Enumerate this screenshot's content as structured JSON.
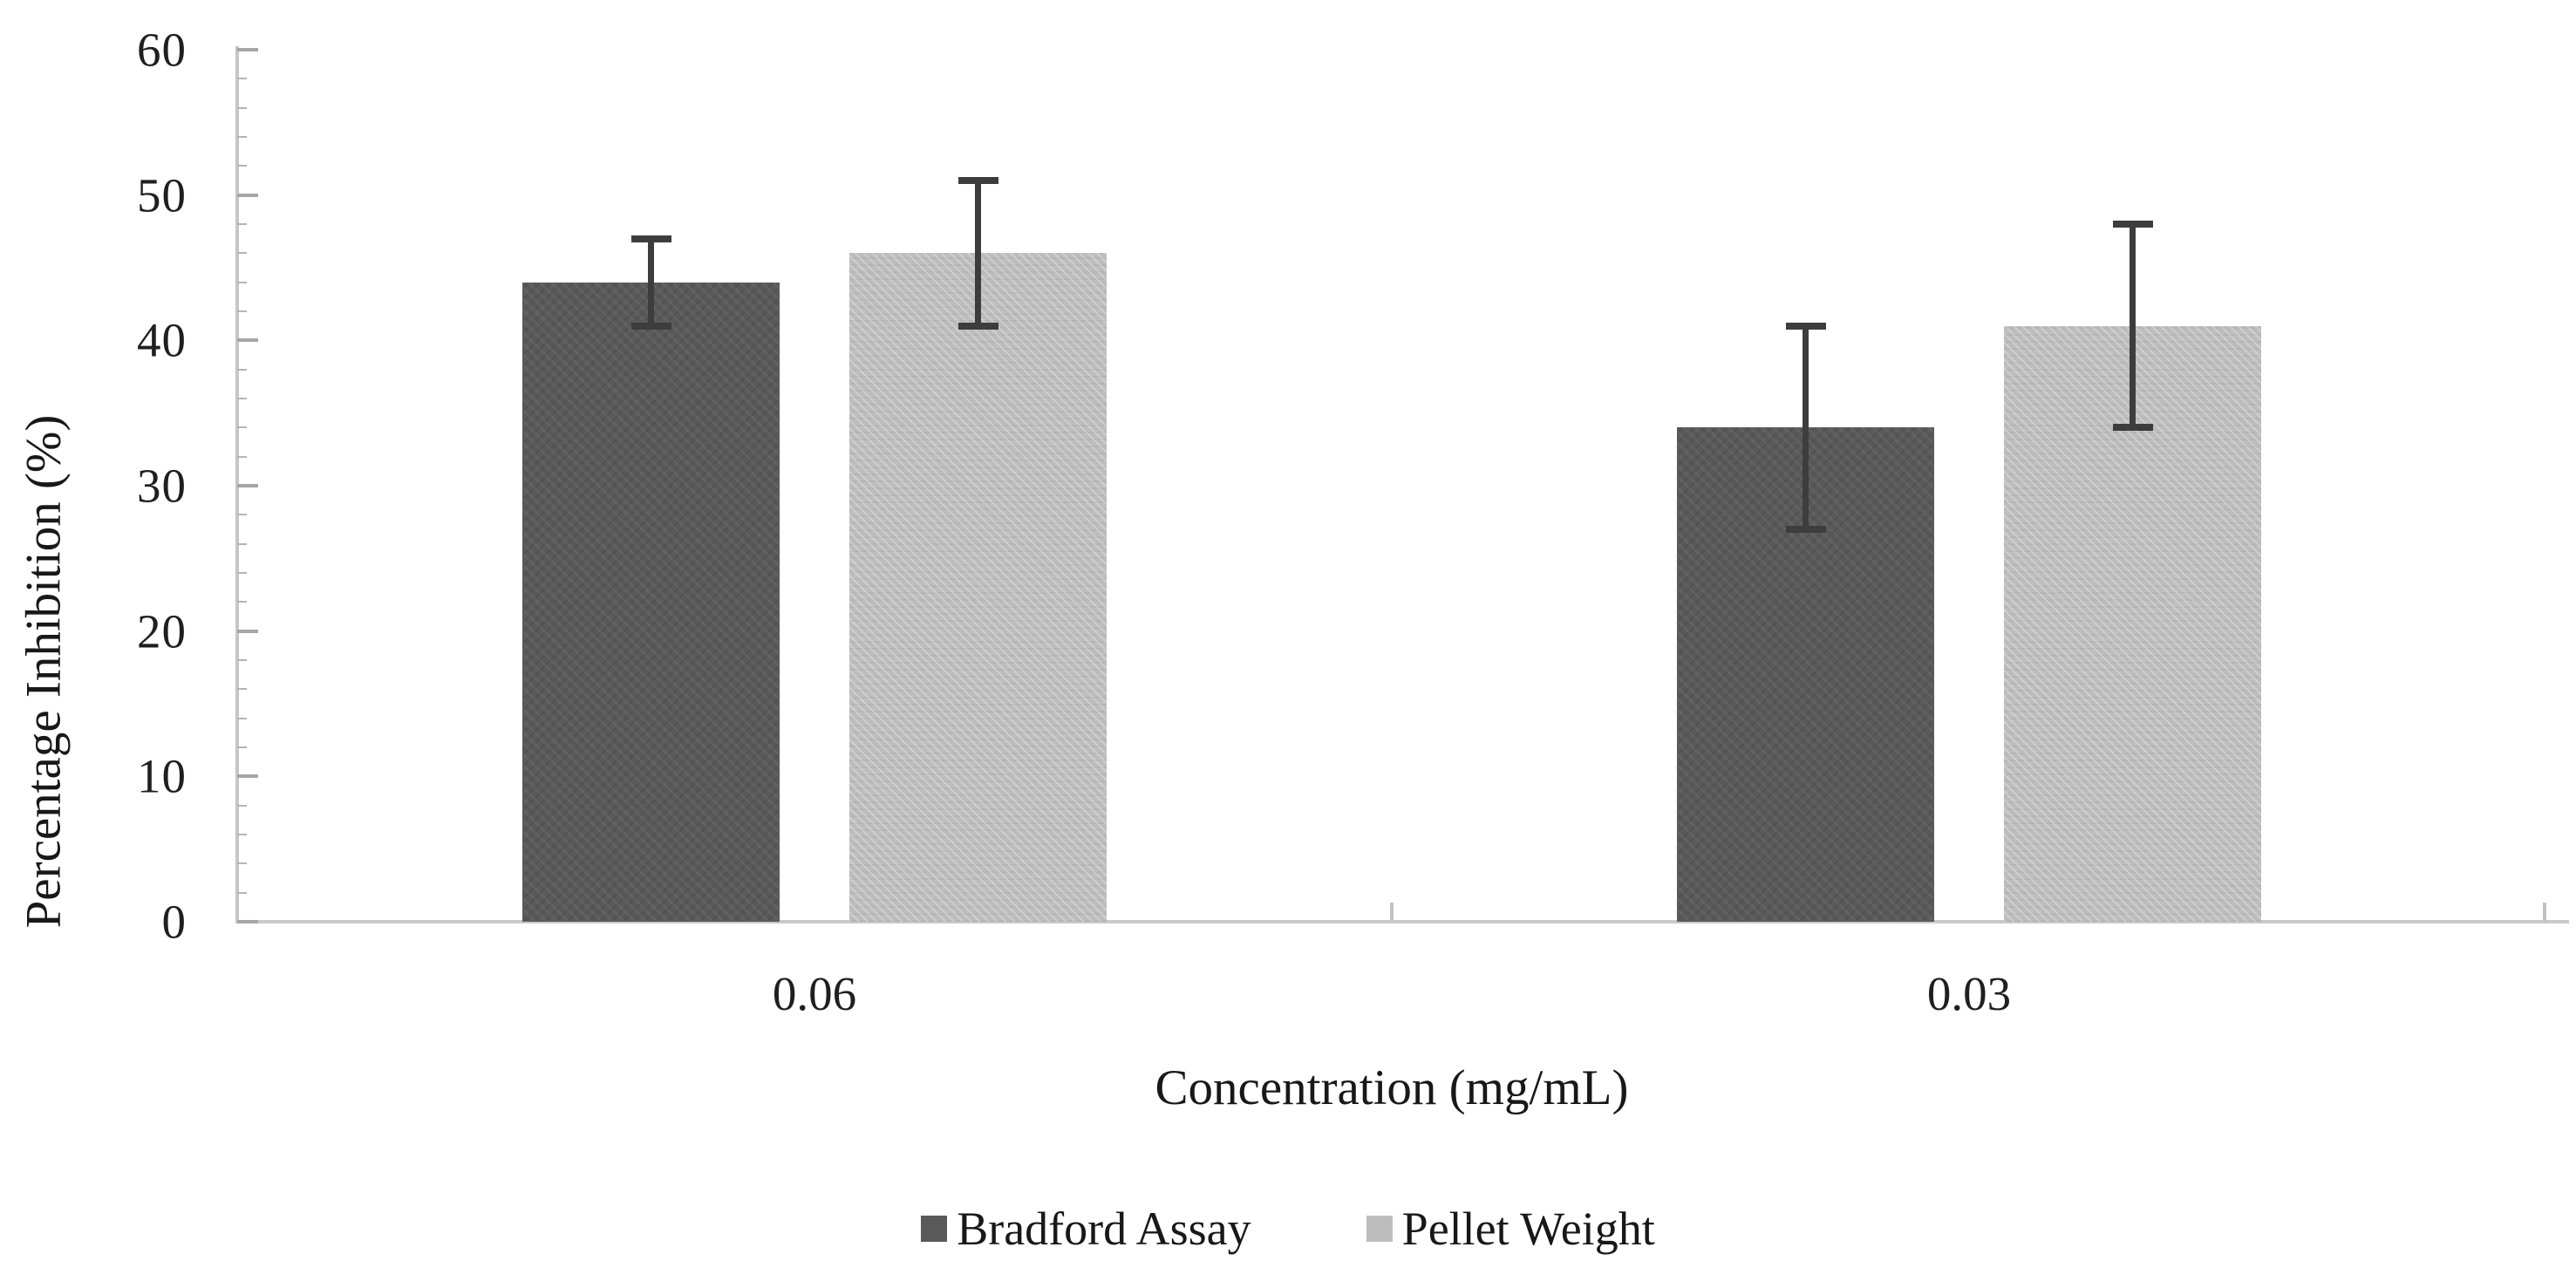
{
  "chart_data": {
    "type": "bar",
    "title": "",
    "xlabel": "Concentration (mg/mL)",
    "ylabel": "Percentage Inhibition (%)",
    "categories": [
      "0.06",
      "0.03"
    ],
    "series": [
      {
        "name": "Bradford Assay",
        "color": "#595959",
        "values": [
          44,
          34
        ],
        "error_low": [
          41,
          27
        ],
        "error_high": [
          47,
          41
        ]
      },
      {
        "name": "Pellet Weight",
        "color": "#bdbdbd",
        "values": [
          46,
          41
        ],
        "error_low": [
          41,
          34
        ],
        "error_high": [
          51,
          48
        ]
      }
    ],
    "ylim": [
      0,
      60
    ],
    "yticks": [
      0,
      10,
      20,
      30,
      40,
      50,
      60
    ],
    "minor_tick_step": 2,
    "grid": false,
    "legend_position": "bottom",
    "error_bar_color": "#3d3d3d",
    "axis_color": "#c6c6c6",
    "tick_color": "#a6a6a6",
    "text_color": "#1f1f1f"
  }
}
